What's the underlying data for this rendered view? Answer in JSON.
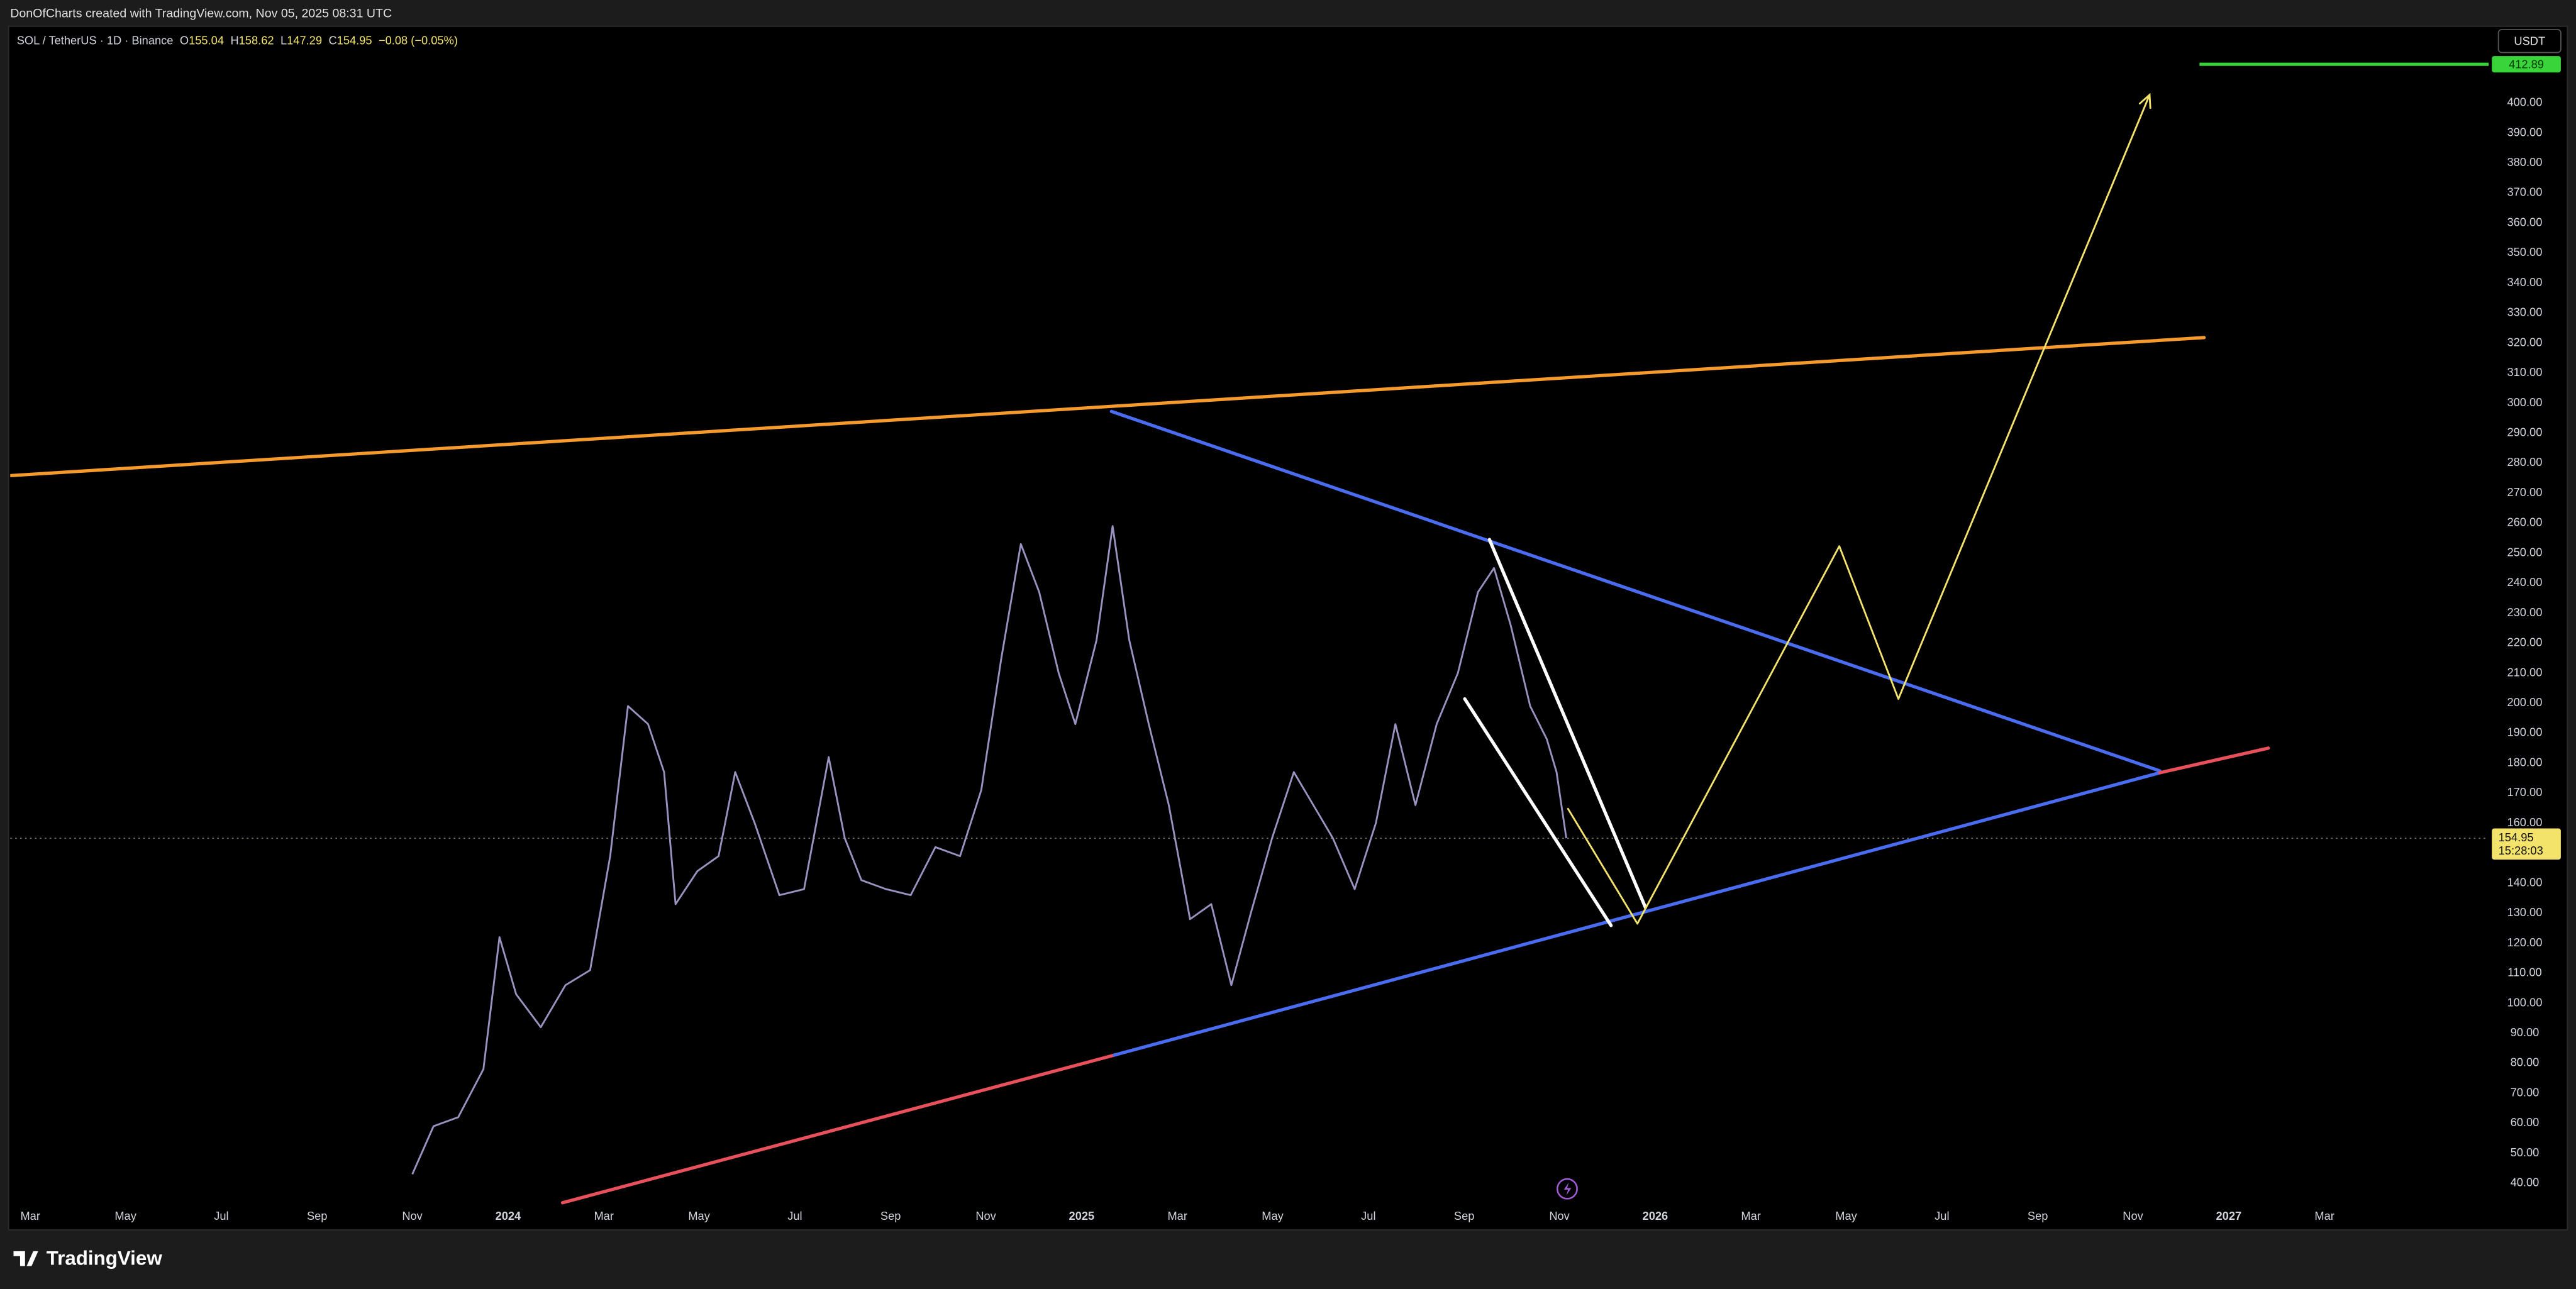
{
  "header": "DonOfCharts created with TradingView.com, Nov 05, 2025 08:31 UTC",
  "footer_brand": "TradingView",
  "chart_data": {
    "type": "line",
    "currency": "USDT",
    "ohlc": [
      {
        "key": "O",
        "value": 155.04
      },
      {
        "key": "H",
        "value": 158.62
      },
      {
        "key": "L",
        "value": 147.29
      },
      {
        "key": "C",
        "value": 154.95
      }
    ],
    "change": "−0.08 (−0.05%)",
    "x": [
      2023.833,
      2023.87,
      2023.913,
      2023.957,
      2023.985,
      2024.014,
      2024.057,
      2024.1,
      2024.143,
      2024.178,
      2024.209,
      2024.244,
      2024.272,
      2024.292,
      2024.33,
      2024.367,
      2024.396,
      2024.43,
      2024.473,
      2024.516,
      2024.559,
      2024.587,
      2024.616,
      2024.659,
      2024.702,
      2024.745,
      2024.788,
      2024.825,
      2024.86,
      2024.894,
      2024.926,
      2024.96,
      2024.989,
      2025.026,
      2025.054,
      2025.083,
      2025.117,
      2025.152,
      2025.189,
      2025.226,
      2025.261,
      2025.295,
      2025.332,
      2025.37,
      2025.404,
      2025.438,
      2025.476,
      2025.513,
      2025.547,
      2025.582,
      2025.619,
      2025.656,
      2025.691,
      2025.719,
      2025.748,
      2025.782,
      2025.811,
      2025.828,
      2025.845
    ],
    "series": [
      {
        "name": "SOL / TetherUS · 1D · Binance",
        "color": "#9a93c0",
        "values": [
          43,
          59,
          62,
          78,
          122,
          103,
          92,
          106,
          111,
          149,
          199,
          193,
          177,
          133,
          144,
          149,
          177,
          160,
          136,
          138,
          182,
          155,
          141,
          138,
          136,
          152,
          149,
          171,
          215,
          253,
          237,
          210,
          193,
          221,
          259,
          221,
          193,
          166,
          128,
          133,
          106,
          130,
          155,
          177,
          166,
          155,
          138,
          160,
          193,
          166,
          193,
          210,
          237,
          245,
          226,
          199,
          188,
          177,
          155
        ]
      }
    ],
    "xlim": [
      2023.132,
      2027.453
    ],
    "ylim": [
      25,
      425
    ],
    "xticks": [
      {
        "value": 2023.167,
        "label": "Mar"
      },
      {
        "value": 2023.333,
        "label": "May"
      },
      {
        "value": 2023.5,
        "label": "Jul"
      },
      {
        "value": 2023.667,
        "label": "Sep"
      },
      {
        "value": 2023.833,
        "label": "Nov"
      },
      2024,
      {
        "value": 2024.167,
        "label": "Mar"
      },
      {
        "value": 2024.333,
        "label": "May"
      },
      {
        "value": 2024.5,
        "label": "Jul"
      },
      {
        "value": 2024.667,
        "label": "Sep"
      },
      {
        "value": 2024.833,
        "label": "Nov"
      },
      2025,
      {
        "value": 2025.167,
        "label": "Mar"
      },
      {
        "value": 2025.333,
        "label": "May"
      },
      {
        "value": 2025.5,
        "label": "Jul"
      },
      {
        "value": 2025.667,
        "label": "Sep"
      },
      {
        "value": 2025.833,
        "label": "Nov"
      },
      2026,
      {
        "value": 2026.167,
        "label": "Mar"
      },
      {
        "value": 2026.333,
        "label": "May"
      },
      {
        "value": 2026.5,
        "label": "Jul"
      },
      {
        "value": 2026.667,
        "label": "Sep"
      },
      {
        "value": 2026.833,
        "label": "Nov"
      },
      2027,
      {
        "value": 2027.167,
        "label": "Mar"
      }
    ],
    "yticks": [
      {
        "value": 40,
        "label": "40.00"
      },
      {
        "value": 50,
        "label": "50.00"
      },
      {
        "value": 60,
        "label": "60.00"
      },
      {
        "value": 70,
        "label": "70.00"
      },
      {
        "value": 80,
        "label": "80.00"
      },
      {
        "value": 90,
        "label": "90.00"
      },
      {
        "value": 100,
        "label": "100.00"
      },
      {
        "value": 110,
        "label": "110.00"
      },
      {
        "value": 120,
        "label": "120.00"
      },
      {
        "value": 130,
        "label": "130.00"
      },
      {
        "value": 140,
        "label": "140.00"
      },
      {
        "value": 150,
        "label": "150.00"
      },
      {
        "value": 160,
        "label": "160.00"
      },
      {
        "value": 170,
        "label": "170.00"
      },
      {
        "value": 180,
        "label": "180.00"
      },
      {
        "value": 190,
        "label": "190.00"
      },
      {
        "value": 200,
        "label": "200.00"
      },
      {
        "value": 210,
        "label": "210.00"
      },
      {
        "value": 220,
        "label": "220.00"
      },
      {
        "value": 230,
        "label": "230.00"
      },
      {
        "value": 240,
        "label": "240.00"
      },
      {
        "value": 250,
        "label": "250.00"
      },
      {
        "value": 260,
        "label": "260.00"
      },
      {
        "value": 270,
        "label": "270.00"
      },
      {
        "value": 280,
        "label": "280.00"
      },
      {
        "value": 290,
        "label": "290.00"
      },
      {
        "value": 300,
        "label": "300.00"
      },
      {
        "value": 310,
        "label": "310.00"
      },
      {
        "value": 320,
        "label": "320.00"
      },
      {
        "value": 330,
        "label": "330.00"
      },
      {
        "value": 340,
        "label": "340.00"
      },
      {
        "value": 350,
        "label": "350.00"
      },
      {
        "value": 360,
        "label": "360.00"
      },
      {
        "value": 370,
        "label": "370.00"
      },
      {
        "value": 380,
        "label": "380.00"
      },
      {
        "value": 390,
        "label": "390.00"
      },
      {
        "value": 400,
        "label": "400.00"
      }
    ],
    "grid": false,
    "last_price": 154.95,
    "countdown": "15:28:03",
    "target": {
      "value": 412.89,
      "color": "#39d33a"
    },
    "drawings": [
      {
        "color": "#f59a2b",
        "points": [
          [
            2023.132,
            275.8
          ],
          [
            2026.957,
            321.8
          ]
        ]
      },
      {
        "color": "#4a6cf0",
        "points": [
          [
            2025.052,
            297.2
          ],
          [
            2026.88,
            177.4
          ]
        ]
      },
      {
        "color": "#e8505b",
        "points": [
          [
            2024.095,
            33.5
          ],
          [
            2025.057,
            82.7
          ]
        ]
      },
      {
        "color": "#4a6cf0",
        "points": [
          [
            2025.057,
            82.7
          ],
          [
            2026.88,
            176.8
          ]
        ]
      },
      {
        "color": "#e8505b",
        "points": [
          [
            2026.88,
            176.8
          ],
          [
            2027.069,
            185.0
          ]
        ]
      },
      {
        "color": "#ffffff",
        "points": [
          [
            2025.711,
            254.5
          ],
          [
            2025.983,
            131.9
          ]
        ]
      },
      {
        "color": "#ffffff",
        "points": [
          [
            2025.668,
            201.4
          ],
          [
            2025.923,
            125.9
          ]
        ]
      },
      {
        "color": "#f3e36a",
        "arrow": true,
        "points": [
          [
            2025.848,
            164.8
          ],
          [
            2025.969,
            126.5
          ],
          [
            2026.321,
            252.3
          ],
          [
            2026.424,
            201.4
          ],
          [
            2026.862,
            402.7
          ]
        ]
      }
    ]
  }
}
